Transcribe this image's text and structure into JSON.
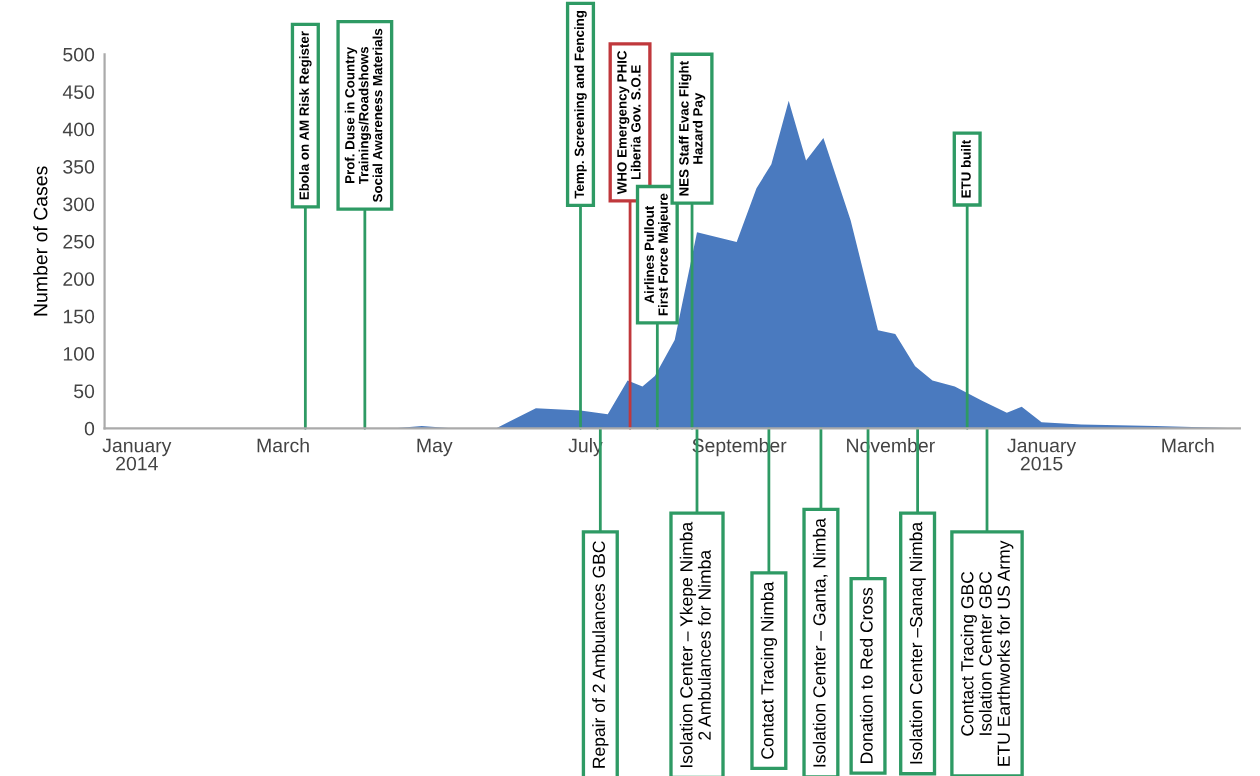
{
  "chart_data": {
    "type": "area",
    "ylabel": "Number of Cases",
    "color": "#4a7abf",
    "x": [
      "2014-01-01",
      "2014-04-15",
      "2014-04-26",
      "2014-05-08",
      "2014-05-26",
      "2014-06-11",
      "2014-06-29",
      "2014-07-10",
      "2014-07-18",
      "2014-07-24",
      "2014-07-29",
      "2014-08-06",
      "2014-08-15",
      "2014-08-31",
      "2014-09-08",
      "2014-09-14",
      "2014-09-21",
      "2014-09-28",
      "2014-10-05",
      "2014-10-16",
      "2014-10-27",
      "2014-11-03",
      "2014-11-11",
      "2014-11-18",
      "2014-11-27",
      "2014-12-08",
      "2014-12-18",
      "2014-12-24",
      "2015-01-01",
      "2015-01-17",
      "2015-02-16",
      "2015-03-21"
    ],
    "values": [
      0,
      0,
      3,
      0,
      0,
      27,
      24,
      19,
      64,
      56,
      70,
      118,
      262,
      249,
      321,
      353,
      438,
      358,
      388,
      278,
      131,
      126,
      83,
      64,
      56,
      37,
      21,
      29,
      8,
      5,
      3,
      0
    ],
    "xlim": [
      "2013-12-19",
      "2015-03-22"
    ],
    "xticks": [
      {
        "value": "2014-01-01",
        "label": "January\n2014"
      },
      {
        "value": "2014-03-01",
        "label": "March"
      },
      {
        "value": "2014-05-01",
        "label": "May"
      },
      {
        "value": "2014-07-01",
        "label": "July"
      },
      {
        "value": "2014-09-01",
        "label": "September"
      },
      {
        "value": "2014-11-01",
        "label": "November"
      },
      {
        "value": "2015-01-01",
        "label": "January\n2015"
      },
      {
        "value": "2015-03-01",
        "label": "March"
      }
    ],
    "ylim": [
      0,
      500
    ],
    "yticks": [
      0,
      50,
      100,
      150,
      200,
      250,
      300,
      350,
      400,
      450,
      500
    ],
    "grid": false,
    "annotations": [
      {
        "text": "Ebola on AM Risk Register",
        "x": "2014-03-10",
        "y": 0
      },
      {
        "text": "Prof. Duse in Country\nTrainings/Roadshows\nSocial Awareness Materials",
        "x": "2014-04-03",
        "y": 0
      },
      {
        "text": "Temp. Screening and Fencing",
        "x": "2014-06-29",
        "y": 0
      },
      {
        "text": "WHO Emergency PHIC\nLiberia Gov. S.O.E",
        "x": "2014-07-19",
        "y": 0
      },
      {
        "text": "Airlines Pullout\nFirst Force Majeure",
        "x": "2014-07-30",
        "y": 0
      },
      {
        "text": "NES Staff Evac Flight\nHazard Pay",
        "x": "2014-08-13",
        "y": 0
      },
      {
        "text": "ETU built",
        "x": "2014-12-02",
        "y": 0
      },
      {
        "text": "Repair of 2 Ambulances GBC",
        "x": "2014-07-07",
        "y": 0
      },
      {
        "text": "Isolation Center – Ykepe Nimba\n2 Ambulances for Nimba",
        "x": "2014-08-15",
        "y": 0
      },
      {
        "text": "Contact Tracing Nimba",
        "x": "2014-09-13",
        "y": 0
      },
      {
        "text": "Isolation Center – Ganta, Nimba",
        "x": "2014-10-04",
        "y": 0
      },
      {
        "text": "Donation to Red Cross",
        "x": "2014-10-23",
        "y": 0
      },
      {
        "text": "Isolation Center –Sanaq Nimba",
        "x": "2014-11-12",
        "y": 0
      },
      {
        "text": "Contact Tracing GBC\nIsolation Center GBC\nETU Earthworks for US Army",
        "x": "2014-12-10",
        "y": 0
      }
    ]
  }
}
